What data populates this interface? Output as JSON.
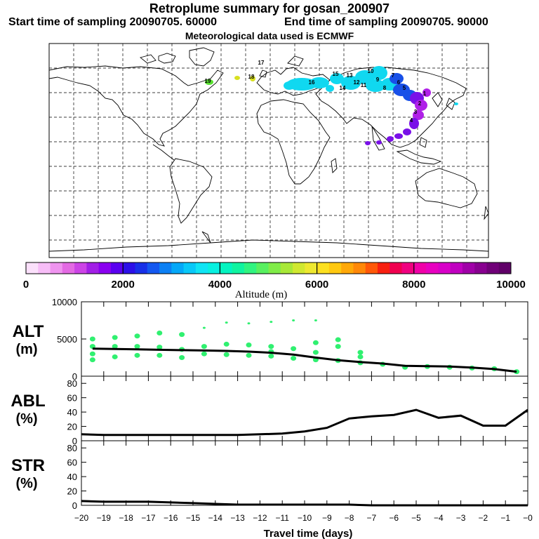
{
  "header": {
    "title": "Retroplume summary for gosan_200907",
    "start": "Start time of sampling 20090705. 60000",
    "end": "End time of sampling 20090705. 90000",
    "met": "Meteorological data used is ECMWF"
  },
  "colorbar": {
    "ticks": [
      "0",
      "2000",
      "4000",
      "6000",
      "8000",
      "10000"
    ],
    "label": "Altitude (m)",
    "colors": [
      "#fbe0fb",
      "#f7bdf7",
      "#ef94ef",
      "#e36ae3",
      "#cc44e6",
      "#a21fe6",
      "#8a00f0",
      "#5a00f0",
      "#2c10e8",
      "#1830e8",
      "#1458f0",
      "#0c80f4",
      "#04a8f8",
      "#08c8f8",
      "#10e4f4",
      "#08f0e0",
      "#04f4c0",
      "#10f4a0",
      "#30f480",
      "#58f060",
      "#80ec48",
      "#a8e838",
      "#d0e830",
      "#eee830",
      "#fce020",
      "#ffc810",
      "#ffa808",
      "#ff8808",
      "#ff5808",
      "#f82010",
      "#f00050",
      "#f00080",
      "#f000a8",
      "#e800c0",
      "#d800c8",
      "#c000c0",
      "#a000a8",
      "#880090",
      "#700078",
      "#600068"
    ]
  },
  "map": {
    "plume_labels": [
      "1",
      "2",
      "3",
      "4",
      "5",
      "6",
      "7",
      "8",
      "9",
      "10",
      "11",
      "12",
      "13",
      "14",
      "15",
      "16",
      "17",
      "18",
      "19"
    ],
    "colors": {
      "high": "#10d8f0",
      "mid": "#1850e8",
      "low": "#7a10e8",
      "near": "#b020e8",
      "green": "#58e030",
      "yellow": "#d8e020"
    }
  },
  "panels": {
    "alt": {
      "label1": "ALT",
      "label2": "(m)",
      "yticks": [
        "10000",
        "5000",
        "0"
      ]
    },
    "abl": {
      "label1": "ABL",
      "label2": "(%)",
      "yticks": [
        "80",
        "60",
        "40",
        "20",
        "0"
      ]
    },
    "str": {
      "label1": "STR",
      "label2": "(%)",
      "yticks": [
        "80",
        "60",
        "40",
        "20",
        "0"
      ]
    }
  },
  "chart_data": {
    "type": "line",
    "xlabel": "Travel time (days)",
    "x_ticks": [
      "−20",
      "−19",
      "−18",
      "−17",
      "−16",
      "−15",
      "−14",
      "−13",
      "−12",
      "−11",
      "−10",
      "−9",
      "−8",
      "−7",
      "−6",
      "−5",
      "−4",
      "−3",
      "−2",
      "−1",
      "−0"
    ],
    "xlim": [
      -20,
      0
    ],
    "series": [
      {
        "name": "ALT mean (m)",
        "ylim": [
          0,
          10000
        ],
        "x": [
          -19.5,
          -18.5,
          -17.5,
          -16.5,
          -15.5,
          -14.5,
          -13.5,
          -12.5,
          -11.5,
          -10.5,
          -9.5,
          -8.5,
          -7.5,
          -6.5,
          -5.5,
          -4.5,
          -3.5,
          -2.5,
          -1.5,
          -0.5
        ],
        "values": [
          3700,
          3650,
          3600,
          3550,
          3500,
          3450,
          3400,
          3300,
          3150,
          2900,
          2500,
          2150,
          1900,
          1700,
          1400,
          1350,
          1300,
          1150,
          950,
          600
        ]
      },
      {
        "name": "ABL (%)",
        "ylim": [
          0,
          90
        ],
        "x": [
          -20,
          -19,
          -18,
          -17,
          -16,
          -15,
          -14,
          -13,
          -12,
          -11,
          -10,
          -9,
          -8,
          -7,
          -6,
          -5,
          -4,
          -3,
          -2,
          -1,
          0
        ],
        "values": [
          9,
          8,
          8,
          8,
          8,
          8,
          8,
          8,
          9,
          10,
          13,
          18,
          31,
          34,
          36,
          43,
          32,
          35,
          21,
          21,
          43
        ]
      },
      {
        "name": "STR (%)",
        "ylim": [
          0,
          90
        ],
        "x": [
          -20,
          -19,
          -18,
          -17,
          -16,
          -15,
          -14,
          -13,
          -12,
          -11,
          -10,
          -9,
          -8,
          -7,
          -6,
          -5,
          -4,
          -3,
          -2,
          -1,
          0
        ],
        "values": [
          6,
          5,
          5,
          5,
          4,
          3,
          2,
          1,
          1,
          1,
          1,
          1,
          1,
          0,
          0,
          0,
          0,
          0,
          0,
          0,
          0
        ]
      }
    ],
    "alt_scatter": {
      "x": [
        -19.5,
        -19.5,
        -19.5,
        -19.5,
        -18.5,
        -18.5,
        -18.5,
        -17.5,
        -17.5,
        -17.5,
        -16.5,
        -16.5,
        -16.5,
        -15.5,
        -15.5,
        -15.5,
        -14.5,
        -14.5,
        -14.5,
        -13.5,
        -13.5,
        -12.5,
        -12.5,
        -11.5,
        -11.5,
        -11.5,
        -10.5,
        -10.5,
        -9.5,
        -9.5,
        -9.5,
        -8.5,
        -8.5,
        -7.5,
        -7.5,
        -6.5,
        -5.5,
        -4.5,
        -3.5,
        -2.5,
        -1.5,
        -0.5,
        -13.5,
        -12.5,
        -11.5,
        -10.5,
        -9.5,
        -8.5,
        -7.5
      ],
      "values": [
        5000,
        4000,
        3000,
        2200,
        5200,
        4000,
        2600,
        5400,
        4000,
        2800,
        5800,
        3900,
        2800,
        5600,
        3600,
        2500,
        6500,
        4000,
        3000,
        4300,
        2900,
        4200,
        2800,
        4000,
        3300,
        2700,
        3700,
        2400,
        4500,
        3200,
        2200,
        4900,
        2100,
        3200,
        1800,
        1600,
        1200,
        1300,
        1200,
        1100,
        1000,
        600,
        7200,
        7100,
        7300,
        7500,
        7500,
        4000,
        2600
      ]
    }
  }
}
